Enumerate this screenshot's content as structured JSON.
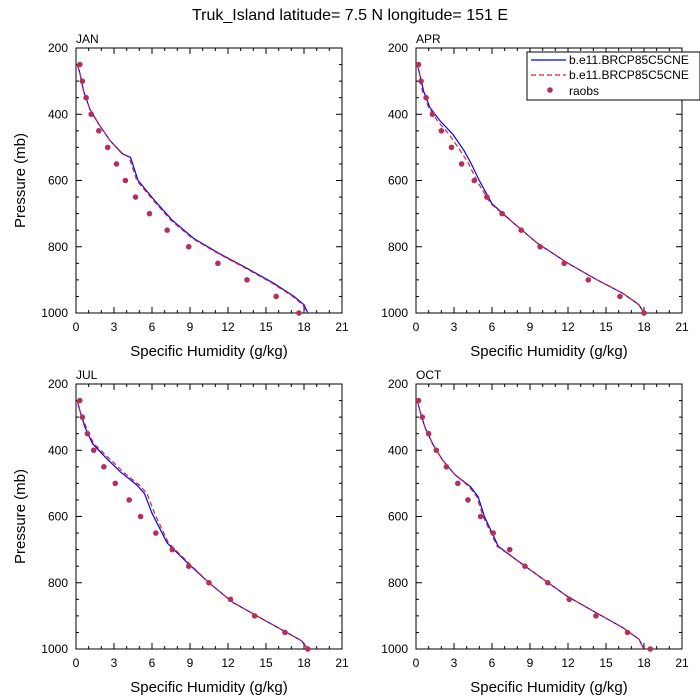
{
  "title": "Truk_Island  latitude= 7.5 N longitude= 151 E",
  "colors": {
    "model1": "#0000ff",
    "model2": "#e02020",
    "raobs": "#b3305a",
    "axis": "#000000"
  },
  "legend": {
    "position": "top-right",
    "entries": [
      {
        "label": "b.e11.BRCP85C5CNE",
        "style": "solid"
      },
      {
        "label": "b.e11.BRCP85C5CNE",
        "style": "dashed"
      },
      {
        "label": "raobs",
        "style": "marker"
      }
    ]
  },
  "chart_data": [
    {
      "type": "line",
      "panel": "JAN",
      "xlabel": "Specific Humidity (g/kg)",
      "ylabel": "Pressure (mb)",
      "xlim": [
        0,
        21
      ],
      "ylim": [
        1000,
        200
      ],
      "xticks": [
        "0",
        "3",
        "6",
        "9",
        "12",
        "15",
        "18",
        "21"
      ],
      "yticks": [
        "200",
        "400",
        "600",
        "800",
        "1000"
      ],
      "series": [
        {
          "name": "b.e11.BRCP85C5CNE",
          "style": "solid",
          "points": [
            [
              0.1,
              250
            ],
            [
              0.3,
              275
            ],
            [
              0.6,
              330
            ],
            [
              1.1,
              385
            ],
            [
              1.8,
              430
            ],
            [
              2.7,
              480
            ],
            [
              3.7,
              520
            ],
            [
              4.3,
              530
            ],
            [
              4.9,
              600
            ],
            [
              6.2,
              660
            ],
            [
              7.6,
              720
            ],
            [
              9.3,
              775
            ],
            [
              11.3,
              820
            ],
            [
              13.5,
              865
            ],
            [
              15.6,
              910
            ],
            [
              17.2,
              950
            ],
            [
              18.0,
              975
            ],
            [
              18.3,
              1000
            ]
          ]
        },
        {
          "name": "b.e11.BRCP85C5CNE",
          "style": "dashed",
          "points": [
            [
              0.1,
              250
            ],
            [
              0.3,
              275
            ],
            [
              0.6,
              330
            ],
            [
              1.1,
              385
            ],
            [
              1.8,
              430
            ],
            [
              2.7,
              480
            ],
            [
              3.6,
              518
            ],
            [
              4.2,
              530
            ],
            [
              4.8,
              600
            ],
            [
              6.1,
              660
            ],
            [
              7.5,
              720
            ],
            [
              9.2,
              775
            ],
            [
              11.2,
              820
            ],
            [
              13.4,
              865
            ],
            [
              15.5,
              910
            ],
            [
              17.1,
              950
            ],
            [
              17.9,
              975
            ],
            [
              18.2,
              1000
            ]
          ]
        },
        {
          "name": "raobs",
          "style": "marker",
          "points": [
            [
              0.3,
              250
            ],
            [
              0.5,
              300
            ],
            [
              0.8,
              350
            ],
            [
              1.2,
              400
            ],
            [
              1.8,
              450
            ],
            [
              2.5,
              500
            ],
            [
              3.2,
              550
            ],
            [
              3.9,
              600
            ],
            [
              4.7,
              650
            ],
            [
              5.8,
              700
            ],
            [
              7.2,
              750
            ],
            [
              8.9,
              800
            ],
            [
              11.2,
              850
            ],
            [
              13.5,
              900
            ],
            [
              15.8,
              950
            ],
            [
              17.6,
              1000
            ]
          ]
        }
      ]
    },
    {
      "type": "line",
      "panel": "APR",
      "xlabel": "Specific Humidity (g/kg)",
      "ylabel": "",
      "xlim": [
        0,
        21
      ],
      "ylim": [
        1000,
        200
      ],
      "xticks": [
        "0",
        "3",
        "6",
        "9",
        "12",
        "15",
        "18",
        "21"
      ],
      "yticks": [
        "200",
        "400",
        "600",
        "800",
        "1000"
      ],
      "series": [
        {
          "name": "b.e11.BRCP85C5CNE",
          "style": "solid",
          "points": [
            [
              0.1,
              250
            ],
            [
              0.3,
              280
            ],
            [
              0.6,
              330
            ],
            [
              1.1,
              380
            ],
            [
              1.9,
              420
            ],
            [
              2.9,
              460
            ],
            [
              3.8,
              510
            ],
            [
              4.3,
              545
            ],
            [
              5.0,
              600
            ],
            [
              6.0,
              670
            ],
            [
              7.6,
              725
            ],
            [
              9.6,
              790
            ],
            [
              12.0,
              850
            ],
            [
              14.3,
              900
            ],
            [
              16.3,
              940
            ],
            [
              17.6,
              975
            ],
            [
              18.0,
              1000
            ]
          ]
        },
        {
          "name": "b.e11.BRCP85C5CNE",
          "style": "dashed",
          "points": [
            [
              0.1,
              250
            ],
            [
              0.3,
              280
            ],
            [
              0.5,
              330
            ],
            [
              1.0,
              380
            ],
            [
              1.7,
              420
            ],
            [
              2.6,
              460
            ],
            [
              3.5,
              510
            ],
            [
              4.1,
              545
            ],
            [
              4.8,
              600
            ],
            [
              5.9,
              670
            ],
            [
              7.6,
              725
            ],
            [
              9.6,
              790
            ],
            [
              12.0,
              850
            ],
            [
              14.3,
              900
            ],
            [
              16.3,
              940
            ],
            [
              17.6,
              975
            ],
            [
              18.0,
              1000
            ]
          ]
        },
        {
          "name": "raobs",
          "style": "marker",
          "points": [
            [
              0.2,
              250
            ],
            [
              0.4,
              300
            ],
            [
              0.8,
              350
            ],
            [
              1.3,
              400
            ],
            [
              2.0,
              450
            ],
            [
              2.8,
              500
            ],
            [
              3.6,
              550
            ],
            [
              4.6,
              600
            ],
            [
              5.6,
              650
            ],
            [
              6.8,
              700
            ],
            [
              8.3,
              750
            ],
            [
              9.8,
              800
            ],
            [
              11.7,
              850
            ],
            [
              13.6,
              900
            ],
            [
              16.1,
              950
            ],
            [
              18.0,
              1000
            ]
          ]
        }
      ]
    },
    {
      "type": "line",
      "panel": "JUL",
      "xlabel": "Specific Humidity (g/kg)",
      "ylabel": "Pressure (mb)",
      "xlim": [
        0,
        21
      ],
      "ylim": [
        1000,
        200
      ],
      "xticks": [
        "0",
        "3",
        "6",
        "9",
        "12",
        "15",
        "18",
        "21"
      ],
      "yticks": [
        "200",
        "400",
        "600",
        "800",
        "1000"
      ],
      "series": [
        {
          "name": "b.e11.BRCP85C5CNE",
          "style": "solid",
          "points": [
            [
              0.1,
              250
            ],
            [
              0.3,
              280
            ],
            [
              0.7,
              330
            ],
            [
              1.3,
              380
            ],
            [
              2.3,
              420
            ],
            [
              3.5,
              465
            ],
            [
              4.8,
              505
            ],
            [
              5.4,
              530
            ],
            [
              6.0,
              590
            ],
            [
              7.2,
              680
            ],
            [
              8.8,
              740
            ],
            [
              10.5,
              800
            ],
            [
              12.4,
              860
            ],
            [
              14.5,
              905
            ],
            [
              16.4,
              945
            ],
            [
              17.8,
              975
            ],
            [
              18.3,
              1000
            ]
          ]
        },
        {
          "name": "b.e11.BRCP85C5CNE",
          "style": "dashed",
          "points": [
            [
              0.1,
              250
            ],
            [
              0.3,
              280
            ],
            [
              0.8,
              330
            ],
            [
              1.4,
              380
            ],
            [
              2.5,
              420
            ],
            [
              3.7,
              465
            ],
            [
              5.0,
              505
            ],
            [
              5.6,
              530
            ],
            [
              6.2,
              590
            ],
            [
              7.3,
              680
            ],
            [
              8.9,
              740
            ],
            [
              10.5,
              800
            ],
            [
              12.4,
              860
            ],
            [
              14.5,
              905
            ],
            [
              16.4,
              945
            ],
            [
              17.8,
              975
            ],
            [
              18.3,
              1000
            ]
          ]
        },
        {
          "name": "raobs",
          "style": "marker",
          "points": [
            [
              0.3,
              250
            ],
            [
              0.5,
              300
            ],
            [
              0.9,
              350
            ],
            [
              1.4,
              400
            ],
            [
              2.2,
              450
            ],
            [
              3.1,
              500
            ],
            [
              4.2,
              550
            ],
            [
              5.1,
              600
            ],
            [
              6.3,
              650
            ],
            [
              7.6,
              700
            ],
            [
              8.9,
              750
            ],
            [
              10.5,
              800
            ],
            [
              12.2,
              850
            ],
            [
              14.1,
              900
            ],
            [
              16.5,
              950
            ],
            [
              18.3,
              1000
            ]
          ]
        }
      ]
    },
    {
      "type": "line",
      "panel": "OCT",
      "xlabel": "Specific Humidity (g/kg)",
      "ylabel": "",
      "xlim": [
        0,
        21
      ],
      "ylim": [
        1000,
        200
      ],
      "xticks": [
        "0",
        "3",
        "6",
        "9",
        "12",
        "15",
        "18",
        "21"
      ],
      "yticks": [
        "200",
        "400",
        "600",
        "800",
        "1000"
      ],
      "series": [
        {
          "name": "b.e11.BRCP85C5CNE",
          "style": "solid",
          "points": [
            [
              0.1,
              250
            ],
            [
              0.3,
              280
            ],
            [
              0.7,
              330
            ],
            [
              1.3,
              380
            ],
            [
              2.1,
              430
            ],
            [
              3.1,
              475
            ],
            [
              4.3,
              510
            ],
            [
              4.9,
              540
            ],
            [
              5.4,
              600
            ],
            [
              6.5,
              690
            ],
            [
              7.9,
              730
            ],
            [
              9.7,
              780
            ],
            [
              11.9,
              840
            ],
            [
              14.2,
              890
            ],
            [
              16.3,
              935
            ],
            [
              17.6,
              970
            ],
            [
              18.0,
              1000
            ]
          ]
        },
        {
          "name": "b.e11.BRCP85C5CNE",
          "style": "dashed",
          "points": [
            [
              0.1,
              250
            ],
            [
              0.3,
              280
            ],
            [
              0.7,
              330
            ],
            [
              1.3,
              380
            ],
            [
              2.1,
              430
            ],
            [
              3.1,
              475
            ],
            [
              4.2,
              510
            ],
            [
              4.8,
              540
            ],
            [
              5.3,
              600
            ],
            [
              6.4,
              690
            ],
            [
              7.9,
              730
            ],
            [
              9.7,
              780
            ],
            [
              11.9,
              840
            ],
            [
              14.2,
              890
            ],
            [
              16.3,
              935
            ],
            [
              17.6,
              970
            ],
            [
              18.0,
              1000
            ]
          ]
        },
        {
          "name": "raobs",
          "style": "marker",
          "points": [
            [
              0.2,
              250
            ],
            [
              0.5,
              300
            ],
            [
              1.0,
              350
            ],
            [
              1.6,
              400
            ],
            [
              2.4,
              450
            ],
            [
              3.3,
              500
            ],
            [
              4.1,
              550
            ],
            [
              5.1,
              600
            ],
            [
              6.1,
              650
            ],
            [
              7.4,
              700
            ],
            [
              8.6,
              750
            ],
            [
              10.4,
              800
            ],
            [
              12.1,
              850
            ],
            [
              14.2,
              900
            ],
            [
              16.7,
              950
            ],
            [
              18.5,
              1000
            ]
          ]
        }
      ]
    }
  ]
}
